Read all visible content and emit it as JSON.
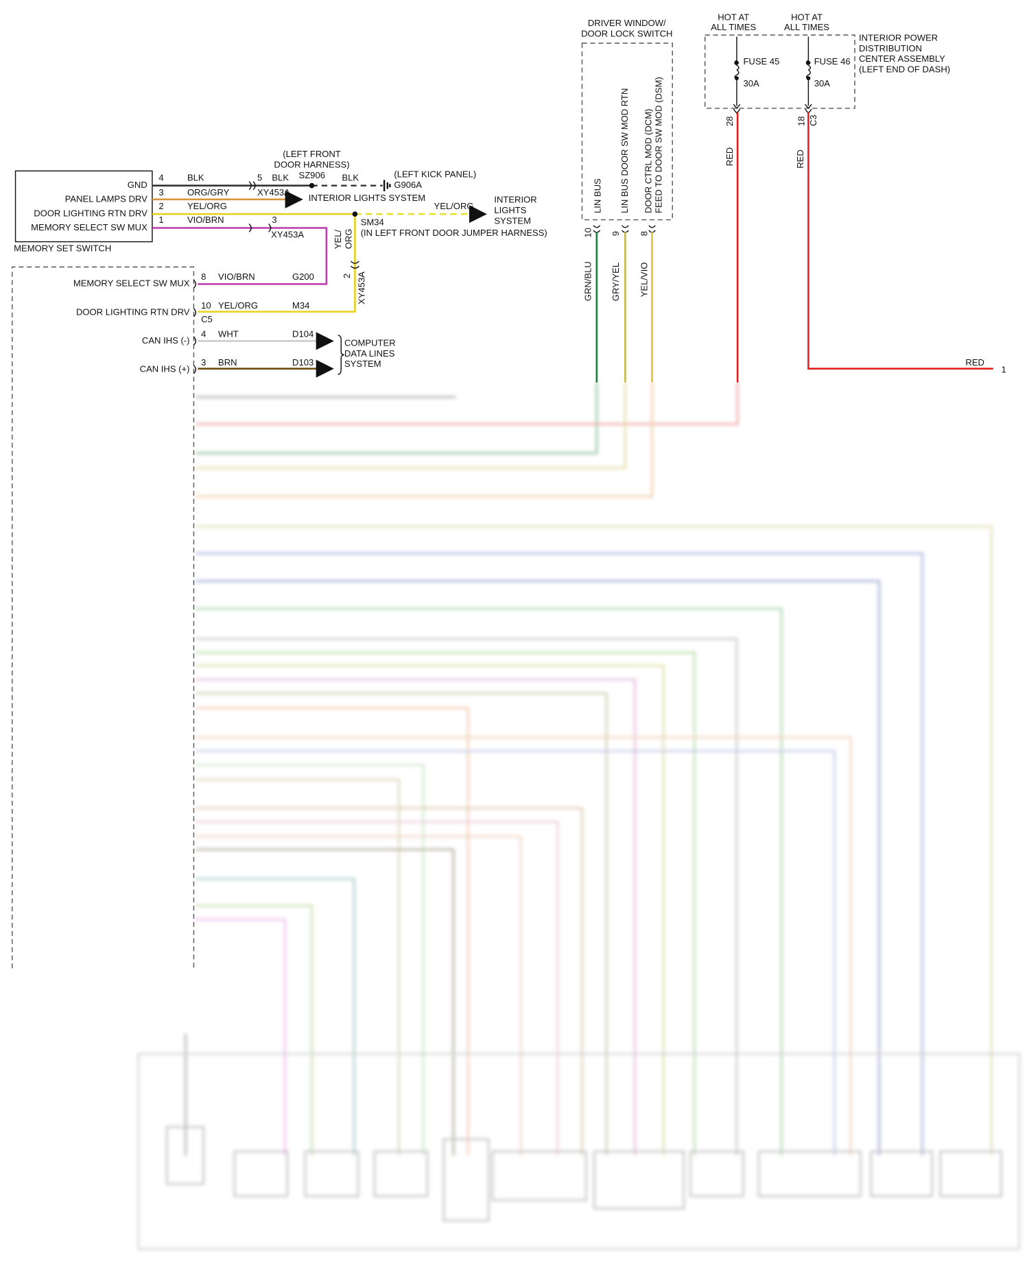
{
  "driver_window_switch": {
    "label": [
      "DRIVER WINDOW/",
      "DOOR LOCK SWITCH"
    ],
    "circuits": [
      {
        "name": [
          "LIN BUS"
        ],
        "pin": "10",
        "wire": "GRN/BLU"
      },
      {
        "name": [
          "LIN BUS DOOR SW MOD RTN"
        ],
        "pin": "9",
        "wire": "GRY/YEL"
      },
      {
        "name": [
          "DOOR CTRL MOD (DCM)",
          "FEED TO DOOR SW MOD (DSM)"
        ],
        "pin": "8",
        "wire": "YEL/VIO"
      }
    ]
  },
  "power_distribution": {
    "label": [
      "INTERIOR POWER",
      "DISTRIBUTION",
      "CENTER ASSEMBLY",
      "(LEFT END OF DASH)"
    ],
    "fuses": [
      {
        "hot": [
          "HOT AT",
          "ALL TIMES"
        ],
        "name": "FUSE 45",
        "rating": "30A",
        "pin": "28",
        "wire": "RED"
      },
      {
        "hot": [
          "HOT AT",
          "ALL TIMES"
        ],
        "name": "FUSE 46",
        "rating": "30A",
        "pin": "18",
        "connector": "C3",
        "wire": "RED"
      }
    ],
    "output": {
      "wire": "RED",
      "pin": "1"
    }
  },
  "memory_set_switch": {
    "label": "MEMORY SET SWITCH",
    "circuits": [
      {
        "name": "GND",
        "pin": "4",
        "wire": "BLK"
      },
      {
        "name": "PANEL LAMPS DRV",
        "pin": "3",
        "wire": "ORG/GRY"
      },
      {
        "name": "DOOR LIGHTING RTN DRV",
        "pin": "2",
        "wire": "YEL/ORG"
      },
      {
        "name": "MEMORY SELECT SW MUX",
        "pin": "1",
        "wire": "VIO/BRN"
      }
    ]
  },
  "ground_path": {
    "harness": [
      "(LEFT FRONT",
      "DOOR HARNESS)"
    ],
    "pin": "5",
    "wire_1": "BLK",
    "splice": "SZ906",
    "wire_2": "BLK",
    "ground_location": "(LEFT KICK PANEL)",
    "ground": "G906A"
  },
  "connector_xy453a": {
    "name_1": "XY453A",
    "pin_1": "3",
    "name_2": "XY453A",
    "pin_2": "2",
    "name_3": "XY453A",
    "wire": [
      "YEL/",
      "ORG"
    ]
  },
  "interior_lights": {
    "arrow_label": "INTERIOR LIGHTS SYSTEM",
    "wire": "YEL/ORG",
    "label": [
      "INTERIOR",
      "LIGHTS",
      "SYSTEM"
    ],
    "splice": "SM34",
    "splice_location": "(IN LEFT FRONT DOOR JUMPER HARNESS)"
  },
  "module": {
    "circuits": [
      {
        "name": "MEMORY SELECT SW MUX",
        "pin": "8",
        "wire": "VIO/BRN",
        "circuit": "G200"
      },
      {
        "name": "DOOR LIGHTING RTN DRV",
        "pin": "10",
        "wire": "YEL/ORG",
        "circuit": "M34",
        "connector": "C5"
      },
      {
        "name": "CAN IHS (-)",
        "pin": "4",
        "wire": "WHT",
        "circuit": "D104"
      },
      {
        "name": "CAN IHS (+)",
        "pin": "3",
        "wire": "BRN",
        "circuit": "D103"
      }
    ],
    "destination": [
      "COMPUTER",
      "DATA LINES",
      "SYSTEM"
    ]
  }
}
